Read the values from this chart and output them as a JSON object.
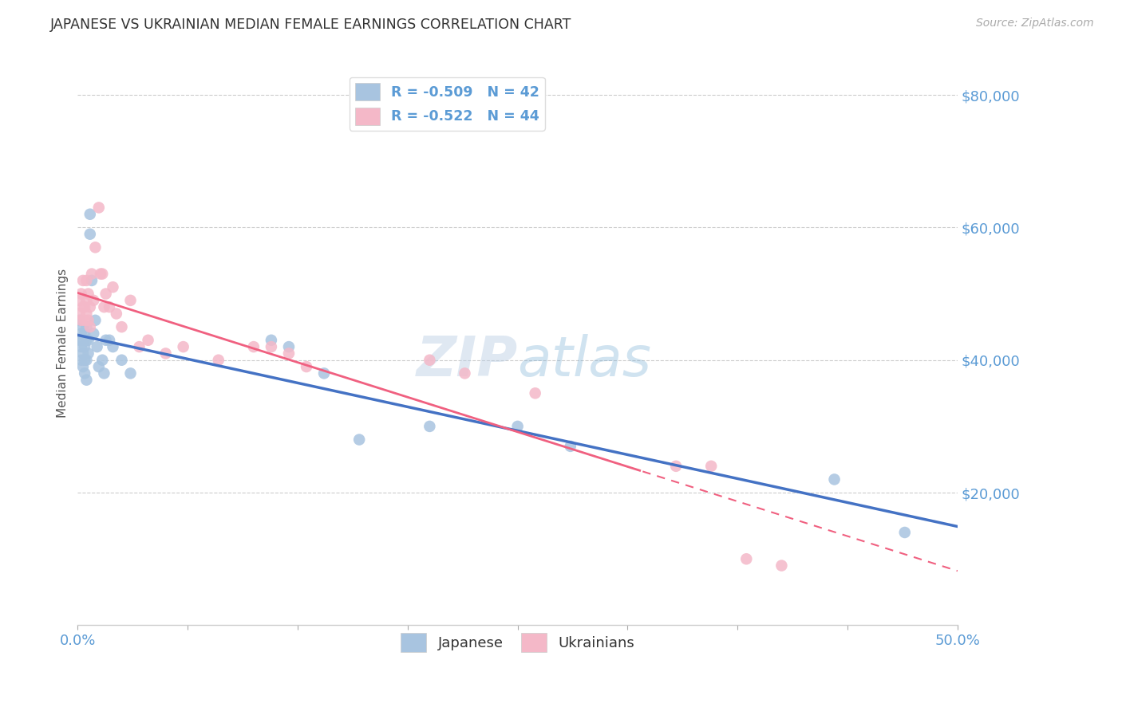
{
  "title": "JAPANESE VS UKRAINIAN MEDIAN FEMALE EARNINGS CORRELATION CHART",
  "source": "Source: ZipAtlas.com",
  "ylabel": "Median Female Earnings",
  "ytick_labels": [
    "$80,000",
    "$60,000",
    "$40,000",
    "$20,000"
  ],
  "ytick_values": [
    80000,
    60000,
    40000,
    20000
  ],
  "watermark": "ZIPatlas",
  "axis_color": "#5b9bd5",
  "tick_color": "#5b9bd5",
  "title_color": "#333333",
  "source_color": "#aaaaaa",
  "japanese_dot_color": "#a8c4e0",
  "ukrainian_dot_color": "#f4b8c8",
  "japanese_line_color": "#4472c4",
  "ukrainian_line_color": "#f06080",
  "grid_color": "#cccccc",
  "watermark_color": "#c8d8f0",
  "xmin": 0.0,
  "xmax": 0.5,
  "ymin": 0,
  "ymax": 85000,
  "japanese_x": [
    0.001,
    0.001,
    0.002,
    0.002,
    0.002,
    0.003,
    0.003,
    0.003,
    0.003,
    0.004,
    0.004,
    0.004,
    0.004,
    0.005,
    0.005,
    0.005,
    0.005,
    0.006,
    0.006,
    0.007,
    0.007,
    0.008,
    0.009,
    0.01,
    0.011,
    0.012,
    0.014,
    0.015,
    0.016,
    0.018,
    0.02,
    0.025,
    0.03,
    0.11,
    0.12,
    0.14,
    0.16,
    0.2,
    0.25,
    0.28,
    0.43,
    0.47
  ],
  "japanese_y": [
    46000,
    43000,
    44000,
    42000,
    40000,
    45000,
    43000,
    41000,
    39000,
    44000,
    42000,
    40000,
    38000,
    45000,
    43000,
    40000,
    37000,
    43000,
    41000,
    62000,
    59000,
    52000,
    44000,
    46000,
    42000,
    39000,
    40000,
    38000,
    43000,
    43000,
    42000,
    40000,
    38000,
    43000,
    42000,
    38000,
    28000,
    30000,
    30000,
    27000,
    22000,
    14000
  ],
  "ukrainian_x": [
    0.001,
    0.001,
    0.002,
    0.002,
    0.003,
    0.003,
    0.004,
    0.004,
    0.005,
    0.005,
    0.005,
    0.006,
    0.006,
    0.007,
    0.007,
    0.008,
    0.009,
    0.01,
    0.012,
    0.013,
    0.014,
    0.015,
    0.016,
    0.018,
    0.02,
    0.022,
    0.025,
    0.03,
    0.035,
    0.04,
    0.05,
    0.06,
    0.08,
    0.1,
    0.11,
    0.12,
    0.13,
    0.2,
    0.22,
    0.26,
    0.34,
    0.36,
    0.38,
    0.4
  ],
  "ukrainian_y": [
    49000,
    47000,
    50000,
    46000,
    52000,
    48000,
    48000,
    46000,
    52000,
    49000,
    47000,
    50000,
    46000,
    48000,
    45000,
    53000,
    49000,
    57000,
    63000,
    53000,
    53000,
    48000,
    50000,
    48000,
    51000,
    47000,
    45000,
    49000,
    42000,
    43000,
    41000,
    42000,
    40000,
    42000,
    42000,
    41000,
    39000,
    40000,
    38000,
    35000,
    24000,
    24000,
    10000,
    9000
  ]
}
